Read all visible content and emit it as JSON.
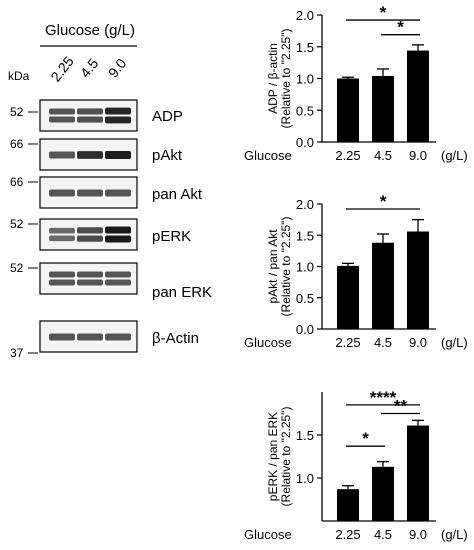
{
  "blot": {
    "header": "Glucose (g/L)",
    "kda_label": "kDa",
    "lanes": [
      "2.25",
      "4.5",
      "9.0"
    ],
    "markers": [
      "52",
      "66",
      "66",
      "52",
      "52",
      "37"
    ],
    "panels": [
      {
        "label": "ADP",
        "double_band": true,
        "intensity": [
          1.0,
          1.05,
          1.45
        ]
      },
      {
        "label": "pAkt",
        "double_band": false,
        "intensity": [
          1.0,
          1.4,
          1.55
        ]
      },
      {
        "label": "pan Akt",
        "double_band": false,
        "intensity": [
          1.0,
          1.0,
          1.0
        ]
      },
      {
        "label": "pERK",
        "double_band": true,
        "intensity": [
          0.8,
          1.1,
          1.6
        ]
      },
      {
        "label": "pan ERK",
        "double_band": true,
        "intensity": [
          1.0,
          1.0,
          1.0
        ]
      },
      {
        "label": "β-Actin",
        "double_band": false,
        "intensity": [
          1.0,
          1.0,
          1.0
        ]
      }
    ]
  },
  "chart_data": [
    {
      "type": "bar",
      "ylabel": [
        "ADP / β-actin",
        "(Relative to \"2.25\")"
      ],
      "xlabel_prefix": "Glucose",
      "xlabel_unit": "(g/L)",
      "categories": [
        "2.25",
        "4.5",
        "9.0"
      ],
      "values": [
        1.0,
        1.04,
        1.44
      ],
      "errors": [
        0.02,
        0.11,
        0.09
      ],
      "ylim": [
        0,
        2.0
      ],
      "yticks": [
        "0.0",
        "0.5",
        "1.0",
        "1.5",
        "2.0"
      ],
      "significance": [
        {
          "from": 0,
          "to": 2,
          "label": "*",
          "y": 1.92
        },
        {
          "from": 1,
          "to": 2,
          "label": "*",
          "y": 1.69
        }
      ]
    },
    {
      "type": "bar",
      "ylabel": [
        "pAkt / pan Akt",
        "(Relative to \"2.25\")"
      ],
      "xlabel_prefix": "Glucose",
      "xlabel_unit": "(g/L)",
      "categories": [
        "2.25",
        "4.5",
        "9.0"
      ],
      "values": [
        1.01,
        1.38,
        1.56
      ],
      "errors": [
        0.04,
        0.14,
        0.19
      ],
      "ylim": [
        0,
        2.0
      ],
      "yticks": [
        "0.0",
        "0.5",
        "1.0",
        "1.5",
        "2.0"
      ],
      "significance": [
        {
          "from": 0,
          "to": 2,
          "label": "*",
          "y": 1.92
        }
      ]
    },
    {
      "type": "bar",
      "ylabel": [
        "pERK / pan ERK",
        "(Relative to \"2.25\")"
      ],
      "xlabel_prefix": "Glucose",
      "xlabel_unit": "(g/L)",
      "categories": [
        "2.25",
        "4.5",
        "9.0"
      ],
      "values": [
        0.87,
        1.13,
        1.61
      ],
      "errors": [
        0.04,
        0.06,
        0.06
      ],
      "ylim": [
        0.5,
        2.0
      ],
      "yticks": [
        "1.0",
        "1.5"
      ],
      "significance": [
        {
          "from": 0,
          "to": 2,
          "label": "****",
          "y": 1.85
        },
        {
          "from": 1,
          "to": 2,
          "label": "**",
          "y": 1.75
        },
        {
          "from": 0,
          "to": 1,
          "label": "*",
          "y": 1.37
        }
      ]
    }
  ]
}
